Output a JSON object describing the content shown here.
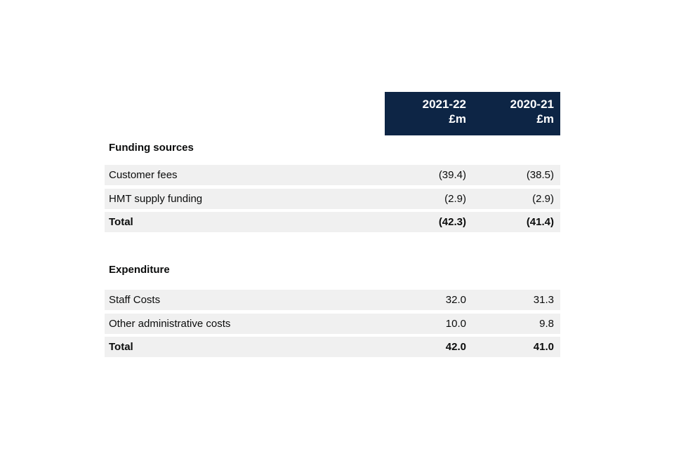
{
  "table": {
    "header": {
      "columns": [
        {
          "year": "2021-22",
          "unit": "£m"
        },
        {
          "year": "2020-21",
          "unit": "£m"
        }
      ]
    },
    "sections": [
      {
        "title": "Funding sources",
        "rows": [
          {
            "label": "Customer fees",
            "values": [
              "(39.4)",
              "(38.5)"
            ]
          },
          {
            "label": "HMT supply funding",
            "values": [
              "(2.9)",
              "(2.9)"
            ]
          },
          {
            "label": "Total",
            "values": [
              "(42.3)",
              "(41.4)"
            ]
          }
        ]
      },
      {
        "title": "Expenditure",
        "rows": [
          {
            "label": "Staff Costs",
            "values": [
              "32.0",
              "31.3"
            ]
          },
          {
            "label": "Other administrative costs",
            "values": [
              "10.0",
              "9.8"
            ]
          },
          {
            "label": "Total",
            "values": [
              "42.0",
              "41.0"
            ]
          }
        ]
      }
    ]
  },
  "colors": {
    "header_bg": "#0d2545",
    "header_text": "#ffffff",
    "row_bg": "#f0f0f0",
    "text": "#0b0c0c",
    "page_bg": "#ffffff"
  }
}
